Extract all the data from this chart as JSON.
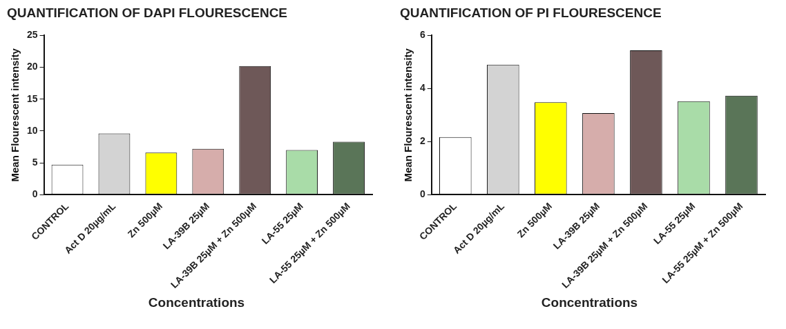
{
  "chart_data": [
    {
      "type": "bar",
      "title": "QUANTIFICATION OF DAPI FLOURESCENCE",
      "xlabel": "Concentrations",
      "ylabel": "Mean Flourescent intensity",
      "categories": [
        "CONTROL",
        "Act D 20µg/mL",
        "Zn 500µM",
        "LA-39B 25µM",
        "LA-39B 25µM + Zn 500µM",
        "LA-55 25µM",
        "LA-55 25µM + Zn 500µM"
      ],
      "values": [
        4.7,
        9.6,
        6.6,
        7.2,
        20.2,
        7.0,
        8.3
      ],
      "colors": [
        "#ffffff",
        "#d3d3d3",
        "#ffff00",
        "#d6adab",
        "#6e5858",
        "#a9dca8",
        "#5a7558"
      ],
      "ylim": [
        0,
        25
      ],
      "yticks": [
        0,
        5,
        10,
        15,
        20,
        25
      ],
      "grid": false,
      "legend": false
    },
    {
      "type": "bar",
      "title": "QUANTIFICATION OF PI FLOURESCENCE",
      "xlabel": "Concentrations",
      "ylabel": "Mean Flourescent intensity",
      "categories": [
        "CONTROL",
        "Act D 20µg/mL",
        "Zn 500µM",
        "LA-39B 25µM",
        "LA-39B 25µM + Zn 500µM",
        "LA-55 25µM",
        "LA-55 25µM + Zn 500µM"
      ],
      "values": [
        2.17,
        4.9,
        3.48,
        3.07,
        5.44,
        3.52,
        3.73
      ],
      "colors": [
        "#ffffff",
        "#d3d3d3",
        "#ffff00",
        "#d6adab",
        "#6e5858",
        "#a9dca8",
        "#5a7558"
      ],
      "ylim": [
        0,
        6
      ],
      "yticks": [
        0,
        2,
        4,
        6
      ],
      "grid": false,
      "legend": false
    }
  ]
}
